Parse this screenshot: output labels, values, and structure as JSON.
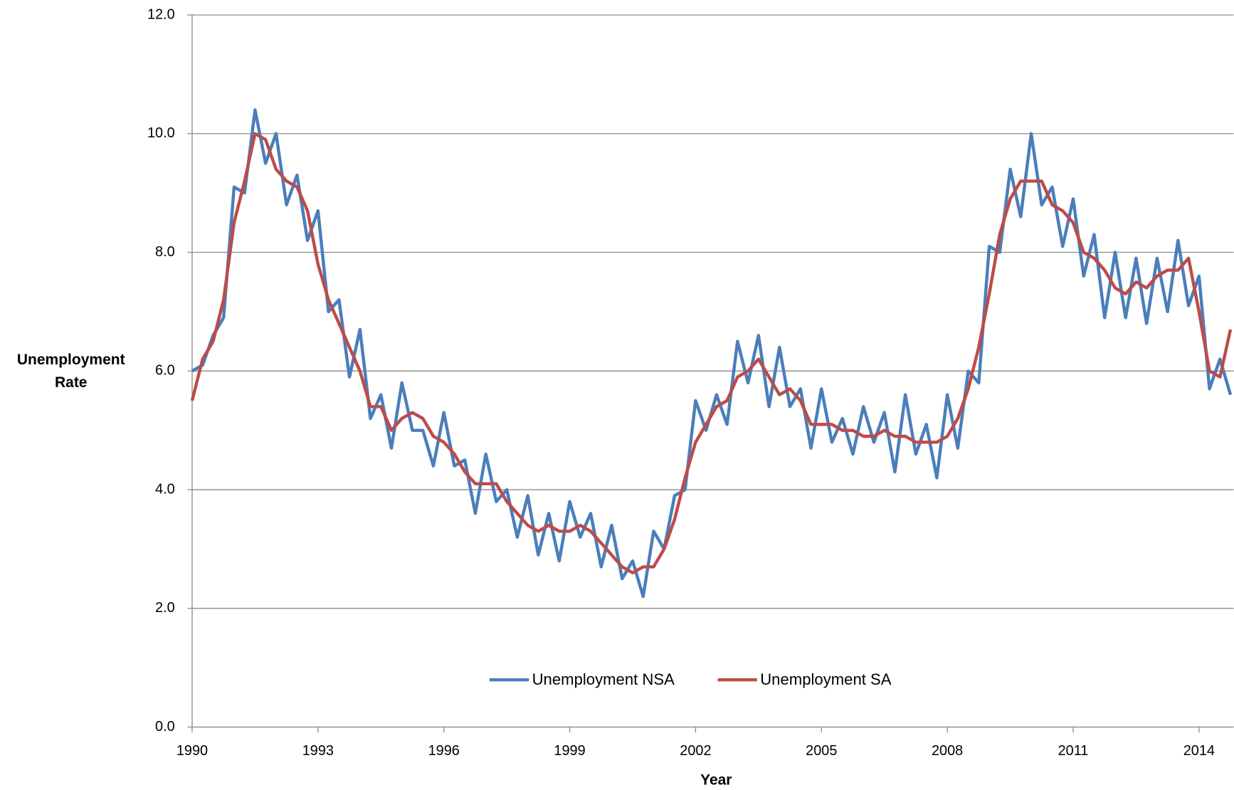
{
  "chart_data": {
    "type": "line",
    "xlabel": "Year",
    "ylabel": "Unemployment Rate",
    "x": [
      1990,
      1990.25,
      1990.5,
      1990.75,
      1991,
      1991.25,
      1991.5,
      1991.75,
      1992,
      1992.25,
      1992.5,
      1992.75,
      1993,
      1993.25,
      1993.5,
      1993.75,
      1994,
      1994.25,
      1994.5,
      1994.75,
      1995,
      1995.25,
      1995.5,
      1995.75,
      1996,
      1996.25,
      1996.5,
      1996.75,
      1997,
      1997.25,
      1997.5,
      1997.75,
      1998,
      1998.25,
      1998.5,
      1998.75,
      1999,
      1999.25,
      1999.5,
      1999.75,
      2000,
      2000.25,
      2000.5,
      2000.75,
      2001,
      2001.25,
      2001.5,
      2001.75,
      2002,
      2002.25,
      2002.5,
      2002.75,
      2003,
      2003.25,
      2003.5,
      2003.75,
      2004,
      2004.25,
      2004.5,
      2004.75,
      2005,
      2005.25,
      2005.5,
      2005.75,
      2006,
      2006.25,
      2006.5,
      2006.75,
      2007,
      2007.25,
      2007.5,
      2007.75,
      2008,
      2008.25,
      2008.5,
      2008.75,
      2009,
      2009.25,
      2009.5,
      2009.75,
      2010,
      2010.25,
      2010.5,
      2010.75,
      2011,
      2011.25,
      2011.5,
      2011.75,
      2012,
      2012.25,
      2012.5,
      2012.75,
      2013,
      2013.25,
      2013.5,
      2013.75,
      2014,
      2014.25,
      2014.5,
      2014.75
    ],
    "series": [
      {
        "name": "Unemployment NSA",
        "color": "#4a7ebb",
        "values": [
          6.0,
          6.1,
          6.6,
          6.9,
          9.1,
          9.0,
          10.4,
          9.5,
          10.0,
          8.8,
          9.3,
          8.2,
          8.7,
          7.0,
          7.2,
          5.9,
          6.7,
          5.2,
          5.6,
          4.7,
          5.8,
          5.0,
          5.0,
          4.4,
          5.3,
          4.4,
          4.5,
          3.6,
          4.6,
          3.8,
          4.0,
          3.2,
          3.9,
          2.9,
          3.6,
          2.8,
          3.8,
          3.2,
          3.6,
          2.7,
          3.4,
          2.5,
          2.8,
          2.2,
          3.3,
          3.0,
          3.9,
          4.0,
          5.5,
          5.0,
          5.6,
          5.1,
          6.5,
          5.8,
          6.6,
          5.4,
          6.4,
          5.4,
          5.7,
          4.7,
          5.7,
          4.8,
          5.2,
          4.6,
          5.4,
          4.8,
          5.3,
          4.3,
          5.6,
          4.6,
          5.1,
          4.2,
          5.6,
          4.7,
          6.0,
          5.8,
          8.1,
          8.0,
          9.4,
          8.6,
          10.0,
          8.8,
          9.1,
          8.1,
          8.9,
          7.6,
          8.3,
          6.9,
          8.0,
          6.9,
          7.9,
          6.8,
          7.9,
          7.0,
          8.2,
          7.1,
          7.6,
          5.7,
          6.2,
          5.6
        ]
      },
      {
        "name": "Unemployment SA",
        "color": "#be4b48",
        "values": [
          5.5,
          6.2,
          6.5,
          7.2,
          8.5,
          9.2,
          10.0,
          9.9,
          9.4,
          9.2,
          9.1,
          8.7,
          7.8,
          7.2,
          6.8,
          6.4,
          6.0,
          5.4,
          5.4,
          5.0,
          5.2,
          5.3,
          5.2,
          4.9,
          4.8,
          4.6,
          4.3,
          4.1,
          4.1,
          4.1,
          3.8,
          3.6,
          3.4,
          3.3,
          3.4,
          3.3,
          3.3,
          3.4,
          3.3,
          3.1,
          2.9,
          2.7,
          2.6,
          2.7,
          2.7,
          3.0,
          3.5,
          4.2,
          4.8,
          5.1,
          5.4,
          5.5,
          5.9,
          6.0,
          6.2,
          5.9,
          5.6,
          5.7,
          5.5,
          5.1,
          5.1,
          5.1,
          5.0,
          5.0,
          4.9,
          4.9,
          5.0,
          4.9,
          4.9,
          4.8,
          4.8,
          4.8,
          4.9,
          5.2,
          5.7,
          6.4,
          7.3,
          8.3,
          8.9,
          9.2,
          9.2,
          9.2,
          8.8,
          8.7,
          8.5,
          8.0,
          7.9,
          7.7,
          7.4,
          7.3,
          7.5,
          7.4,
          7.6,
          7.7,
          7.7,
          7.9,
          7.0,
          6.0,
          5.9,
          6.7
        ]
      }
    ],
    "xlim": [
      1990,
      2014.83
    ],
    "xticks": [
      1990,
      1993,
      1996,
      1999,
      2002,
      2005,
      2008,
      2011,
      2014
    ],
    "ylim": [
      0,
      12
    ],
    "yticks": [
      {
        "value": 0,
        "label": "0.0"
      },
      {
        "value": 2,
        "label": "2.0"
      },
      {
        "value": 4,
        "label": "4.0"
      },
      {
        "value": 6,
        "label": "6.0"
      },
      {
        "value": 8,
        "label": "8.0"
      },
      {
        "value": 10,
        "label": "10.0"
      },
      {
        "value": 12,
        "label": "12.0"
      }
    ],
    "grid": true,
    "legend": "bottom"
  }
}
